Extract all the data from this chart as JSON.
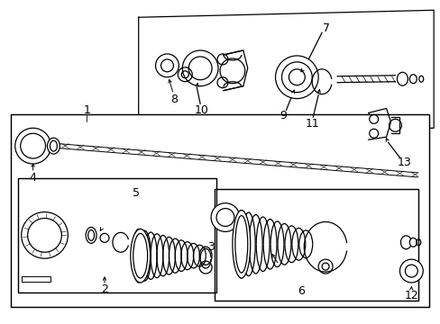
{
  "bg_color": "#ffffff",
  "line_color": "#000000",
  "figure_width": 4.89,
  "figure_height": 3.6,
  "dpi": 100
}
